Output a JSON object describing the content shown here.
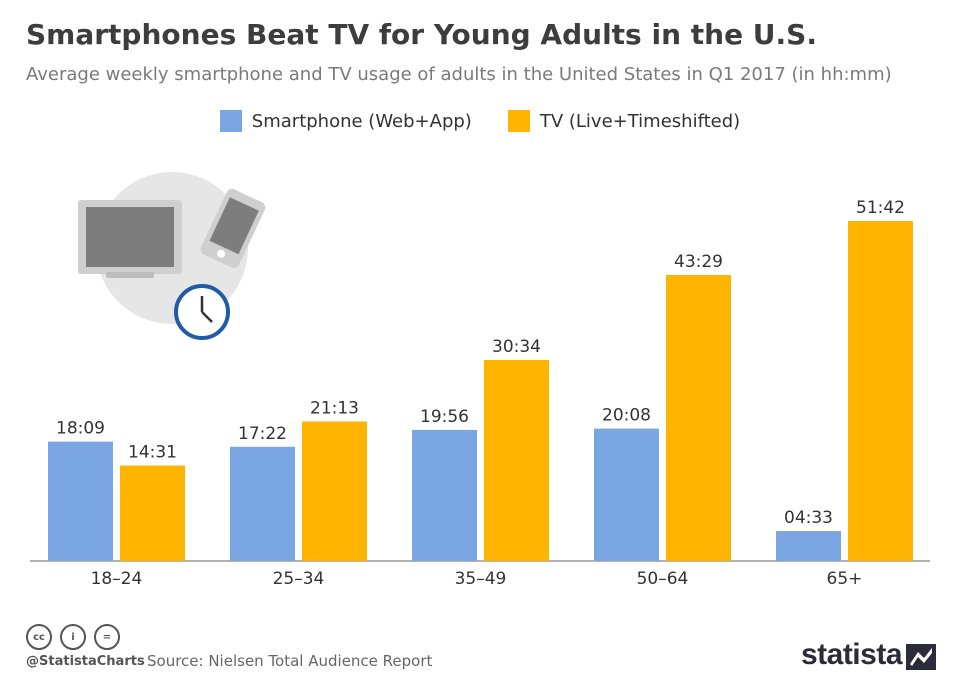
{
  "header": {
    "title": "Smartphones Beat TV for Young Adults in the U.S.",
    "subtitle": "Average weekly smartphone and TV usage of adults in the United States in Q1 2017 (in hh:mm)"
  },
  "legend": {
    "items": [
      {
        "label": "Smartphone (Web+App)",
        "color": "#7aa7e3"
      },
      {
        "label": "TV (Live+Timeshifted)",
        "color": "#ffb400"
      }
    ]
  },
  "chart_data": {
    "type": "bar",
    "title": "Smartphones Beat TV for Young Adults in the U.S.",
    "subtitle": "Average weekly smartphone and TV usage of adults in the United States in Q1 2017 (in hh:mm)",
    "categories": [
      "18–24",
      "25–34",
      "35–49",
      "50–64",
      "65+"
    ],
    "series": [
      {
        "name": "Smartphone (Web+App)",
        "color": "#7aa7e3",
        "values_minutes": [
          1089,
          1042,
          1196,
          1208,
          273
        ],
        "labels": [
          "18:09",
          "17:22",
          "19:56",
          "20:08",
          "04:33"
        ]
      },
      {
        "name": "TV (Live+Timeshifted)",
        "color": "#ffb400",
        "values_minutes": [
          871,
          1273,
          1834,
          2609,
          3102
        ],
        "labels": [
          "14:31",
          "21:13",
          "30:34",
          "43:29",
          "51:42"
        ]
      }
    ],
    "unit": "hh:mm",
    "ylim_minutes": [
      0,
      3102
    ],
    "grid": false,
    "legend_position": "top-center"
  },
  "footer": {
    "cc_icons": [
      "cc",
      "by",
      "nd"
    ],
    "handle": "@StatistaCharts",
    "source": "Source: Nielsen Total Audience Report",
    "brand": "statista"
  }
}
